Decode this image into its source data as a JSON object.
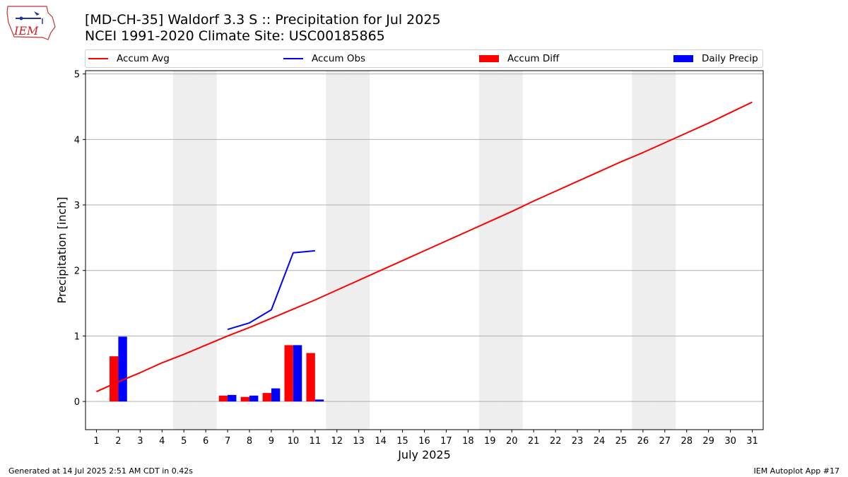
{
  "title_line1": "[MD-CH-35] Waldorf 3.3 S :: Precipitation for Jul 2025",
  "title_line2": "NCEI 1991-2020 Climate Site: USC00185865",
  "logo_text": "IEM",
  "footer_left": "Generated at 14 Jul 2025 2:51 AM CDT in 0.42s",
  "footer_right": "IEM Autoplot App #17",
  "colors": {
    "accum_avg": "#ff0000",
    "accum_obs": "#0000ff",
    "accum_diff": "#ff0000",
    "daily_precip": "#0000ff",
    "weekend_shade": "#eeeeee",
    "grid": "#b0b0b0"
  },
  "chart_data": {
    "type": "bar",
    "xlabel": "July 2025",
    "ylabel": "Precipitation [inch]",
    "xlim": [
      0.5,
      31.5
    ],
    "ylim": [
      -0.43,
      5.05
    ],
    "yticks": [
      0,
      1,
      2,
      3,
      4,
      5
    ],
    "xticks": [
      1,
      2,
      3,
      4,
      5,
      6,
      7,
      8,
      9,
      10,
      11,
      12,
      13,
      14,
      15,
      16,
      17,
      18,
      19,
      20,
      21,
      22,
      23,
      24,
      25,
      26,
      27,
      28,
      29,
      30,
      31
    ],
    "grid": "horizontal",
    "legend_position": "top",
    "weekend_days": [
      5,
      6,
      12,
      13,
      19,
      20,
      26,
      27
    ],
    "legend": [
      "Accum Avg",
      "Accum Obs",
      "Accum Diff",
      "Daily Precip"
    ],
    "series": [
      {
        "name": "Accum Avg",
        "kind": "line",
        "x": [
          1,
          2,
          3,
          4,
          5,
          6,
          7,
          8,
          9,
          10,
          11,
          12,
          13,
          14,
          15,
          16,
          17,
          18,
          19,
          20,
          21,
          22,
          23,
          24,
          25,
          26,
          27,
          28,
          29,
          30,
          31
        ],
        "values": [
          0.15,
          0.3,
          0.44,
          0.59,
          0.72,
          0.86,
          1.0,
          1.13,
          1.27,
          1.41,
          1.55,
          1.7,
          1.85,
          2.0,
          2.15,
          2.3,
          2.45,
          2.6,
          2.75,
          2.9,
          3.06,
          3.21,
          3.36,
          3.51,
          3.66,
          3.8,
          3.95,
          4.1,
          4.25,
          4.41,
          4.57
        ]
      },
      {
        "name": "Accum Obs",
        "kind": "line",
        "x": [
          7,
          8,
          9,
          10,
          11
        ],
        "values": [
          1.1,
          1.2,
          1.4,
          2.27,
          2.3
        ]
      },
      {
        "name": "Accum Diff",
        "kind": "bar",
        "x": [
          2,
          7,
          8,
          9,
          10,
          11
        ],
        "values": [
          0.69,
          0.09,
          0.07,
          0.13,
          0.86,
          0.74
        ]
      },
      {
        "name": "Daily Precip",
        "kind": "bar",
        "x": [
          2,
          7,
          8,
          9,
          10,
          11
        ],
        "values": [
          0.99,
          0.1,
          0.09,
          0.2,
          0.86,
          0.03
        ]
      }
    ]
  }
}
